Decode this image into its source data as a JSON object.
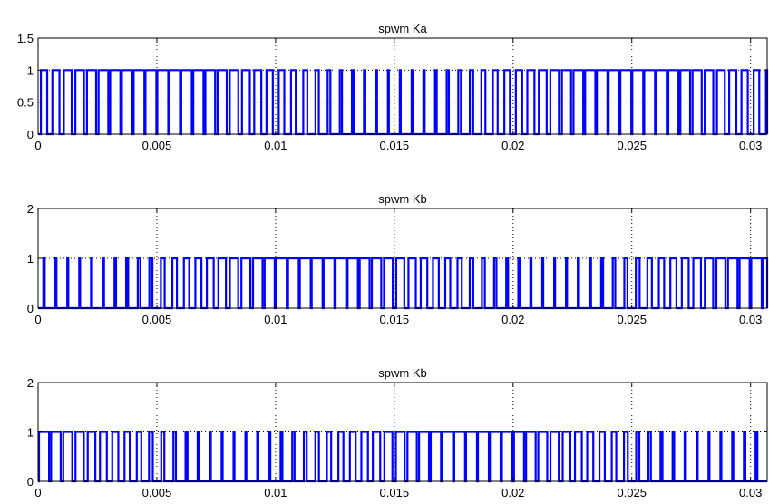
{
  "chart_data": [
    {
      "type": "line",
      "title": "spwm Ka",
      "xlabel": "",
      "ylabel": "",
      "xlim": [
        0,
        0.0307
      ],
      "ylim": [
        0,
        1.5
      ],
      "xticks": [
        "0",
        "0.005",
        "0.01",
        "0.015",
        "0.02",
        "0.025",
        "0.03"
      ],
      "xtick_values": [
        0,
        0.005,
        0.01,
        0.015,
        0.02,
        0.025,
        0.03
      ],
      "yticks": [
        "0",
        "0.5",
        "1",
        "1.5"
      ],
      "ytick_values": [
        0,
        0.5,
        1,
        1.5
      ],
      "grid": true,
      "color": "#0000ff",
      "carrier_period": 0.0005,
      "modulation_period": 0.02,
      "phase_deg": 0,
      "series": [
        {
          "values": "switching signal 0/1"
        }
      ]
    },
    {
      "type": "line",
      "title": "spwm Kb",
      "xlabel": "",
      "ylabel": "",
      "xlim": [
        0,
        0.0307
      ],
      "ylim": [
        0,
        2
      ],
      "xticks": [
        "0",
        "0.005",
        "0.01",
        "0.015",
        "0.02",
        "0.025",
        "0.03"
      ],
      "xtick_values": [
        0,
        0.005,
        0.01,
        0.015,
        0.02,
        0.025,
        0.03
      ],
      "yticks": [
        "0",
        "1",
        "2"
      ],
      "ytick_values": [
        0,
        1,
        2
      ],
      "grid": true,
      "color": "#0000ff",
      "carrier_period": 0.0005,
      "modulation_period": 0.02,
      "phase_deg": -120,
      "series": [
        {
          "values": "switching signal 0/1"
        }
      ]
    },
    {
      "type": "line",
      "title": "spwm Kb",
      "xlabel": "",
      "ylabel": "",
      "xlim": [
        0,
        0.0307
      ],
      "ylim": [
        0,
        2
      ],
      "xticks": [
        "0",
        "0.005",
        "0.01",
        "0.015",
        "0.02",
        "0.025",
        "0.03"
      ],
      "xtick_values": [
        0,
        0.005,
        0.01,
        0.015,
        0.02,
        0.025,
        0.03
      ],
      "yticks": [
        "0",
        "1",
        "2"
      ],
      "ytick_values": [
        0,
        1,
        2
      ],
      "grid": true,
      "color": "#0000ff",
      "carrier_period": 0.0005,
      "modulation_period": 0.02,
      "phase_deg": 120,
      "series": [
        {
          "values": "switching signal 0/1"
        }
      ]
    }
  ]
}
